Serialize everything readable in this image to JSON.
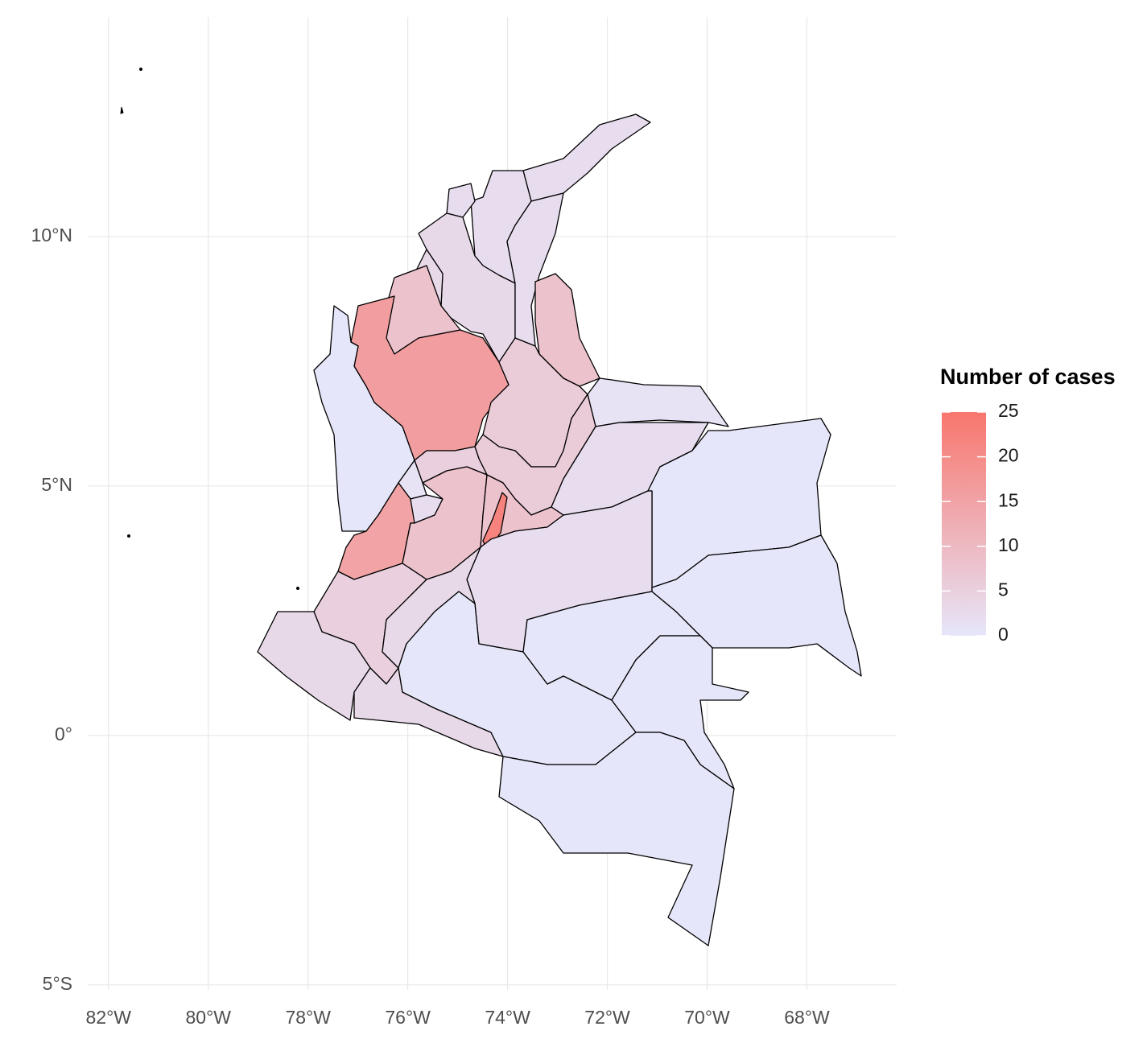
{
  "chart_data": {
    "type": "choropleth",
    "xlim": [
      -82.4,
      -66.2
    ],
    "ylim": [
      -5.1,
      14.4
    ],
    "xticks": [
      {
        "value": -82,
        "label": "82°W"
      },
      {
        "value": -80,
        "label": "80°W"
      },
      {
        "value": -78,
        "label": "78°W"
      },
      {
        "value": -76,
        "label": "76°W"
      },
      {
        "value": -74,
        "label": "74°W"
      },
      {
        "value": -72,
        "label": "72°W"
      },
      {
        "value": -70,
        "label": "70°W"
      },
      {
        "value": -68,
        "label": "68°W"
      }
    ],
    "yticks": [
      {
        "value": -5,
        "label": "5°S"
      },
      {
        "value": 0,
        "label": "0°"
      },
      {
        "value": 5,
        "label": "5°N"
      },
      {
        "value": 10,
        "label": "10°N"
      }
    ],
    "grid": true,
    "values": [
      2,
      2,
      2,
      3,
      2,
      3,
      8,
      16,
      0,
      8,
      6,
      1,
      6,
      2,
      0,
      5,
      1,
      15,
      2,
      8,
      8,
      22,
      2,
      5,
      3,
      3,
      3,
      0,
      0,
      0,
      0,
      0
    ],
    "legend": {
      "title": "Number of cases",
      "limits": [
        0,
        25
      ],
      "ticks": [
        0,
        5,
        10,
        15,
        20,
        25
      ],
      "colors": [
        "#e6e6fa",
        "#f8766d"
      ]
    }
  }
}
